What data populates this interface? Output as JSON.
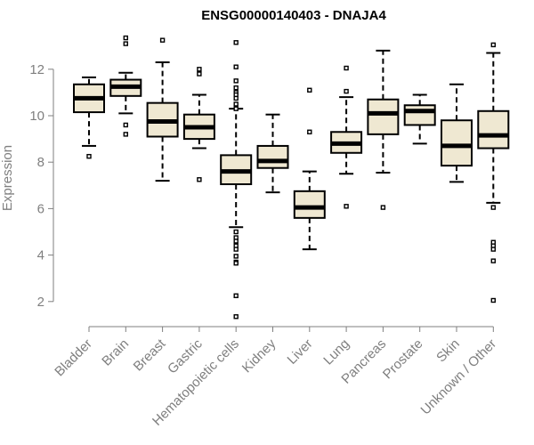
{
  "chart_data": {
    "type": "boxplot",
    "title": "ENSG00000140403 - DNAJA4",
    "xlabel": "",
    "ylabel": "Expression",
    "y_ticks": [
      2,
      4,
      6,
      8,
      10,
      12
    ],
    "ylim": [
      1.2,
      13.5
    ],
    "box_fill": "#efe8d2",
    "grid": false,
    "categories": [
      "Bladder",
      "Brain",
      "Breast",
      "Gastric",
      "Hematopoietic cells",
      "Kidney",
      "Liver",
      "Lung",
      "Pancreas",
      "Prostate",
      "Skin",
      "Unknown / Other"
    ],
    "boxes": [
      {
        "category": "Bladder",
        "whisker_low": 8.7,
        "q1": 10.15,
        "median": 10.75,
        "q3": 11.35,
        "whisker_high": 11.65,
        "outliers": [
          8.25
        ]
      },
      {
        "category": "Brain",
        "whisker_low": 10.1,
        "q1": 10.85,
        "median": 11.25,
        "q3": 11.55,
        "whisker_high": 11.85,
        "outliers": [
          13.35,
          13.1,
          9.6,
          9.2
        ]
      },
      {
        "category": "Breast",
        "whisker_low": 7.2,
        "q1": 9.1,
        "median": 9.75,
        "q3": 10.55,
        "whisker_high": 12.3,
        "outliers": [
          13.25
        ]
      },
      {
        "category": "Gastric",
        "whisker_low": 8.6,
        "q1": 9.0,
        "median": 9.5,
        "q3": 10.05,
        "whisker_high": 10.9,
        "outliers": [
          12.0,
          11.8,
          7.25
        ]
      },
      {
        "category": "Hematopoietic cells",
        "whisker_low": 5.2,
        "q1": 7.05,
        "median": 7.6,
        "q3": 8.3,
        "whisker_high": 10.3,
        "outliers": [
          13.15,
          12.1,
          11.5,
          11.2,
          11.0,
          10.9,
          10.75,
          10.5,
          10.3,
          5.0,
          4.75,
          4.6,
          4.4,
          4.25,
          3.95,
          3.7,
          3.65,
          2.25,
          1.35
        ]
      },
      {
        "category": "Kidney",
        "whisker_low": 6.7,
        "q1": 7.75,
        "median": 8.05,
        "q3": 8.7,
        "whisker_high": 10.05,
        "outliers": []
      },
      {
        "category": "Liver",
        "whisker_low": 4.25,
        "q1": 5.6,
        "median": 6.05,
        "q3": 6.75,
        "whisker_high": 7.6,
        "outliers": [
          11.1,
          9.3
        ]
      },
      {
        "category": "Lung",
        "whisker_low": 7.5,
        "q1": 8.4,
        "median": 8.8,
        "q3": 9.3,
        "whisker_high": 10.8,
        "outliers": [
          12.05,
          11.05,
          6.1
        ]
      },
      {
        "category": "Pancreas",
        "whisker_low": 7.55,
        "q1": 9.2,
        "median": 10.1,
        "q3": 10.7,
        "whisker_high": 12.8,
        "outliers": [
          6.05
        ]
      },
      {
        "category": "Prostate",
        "whisker_low": 8.8,
        "q1": 9.6,
        "median": 10.2,
        "q3": 10.45,
        "whisker_high": 10.9,
        "outliers": []
      },
      {
        "category": "Skin",
        "whisker_low": 7.15,
        "q1": 7.85,
        "median": 8.7,
        "q3": 9.8,
        "whisker_high": 11.35,
        "outliers": []
      },
      {
        "category": "Unknown / Other",
        "whisker_low": 6.25,
        "q1": 8.6,
        "median": 9.15,
        "q3": 10.2,
        "whisker_high": 12.7,
        "outliers": [
          13.05,
          6.05,
          4.55,
          4.4,
          4.25,
          3.75,
          2.05
        ]
      }
    ]
  }
}
